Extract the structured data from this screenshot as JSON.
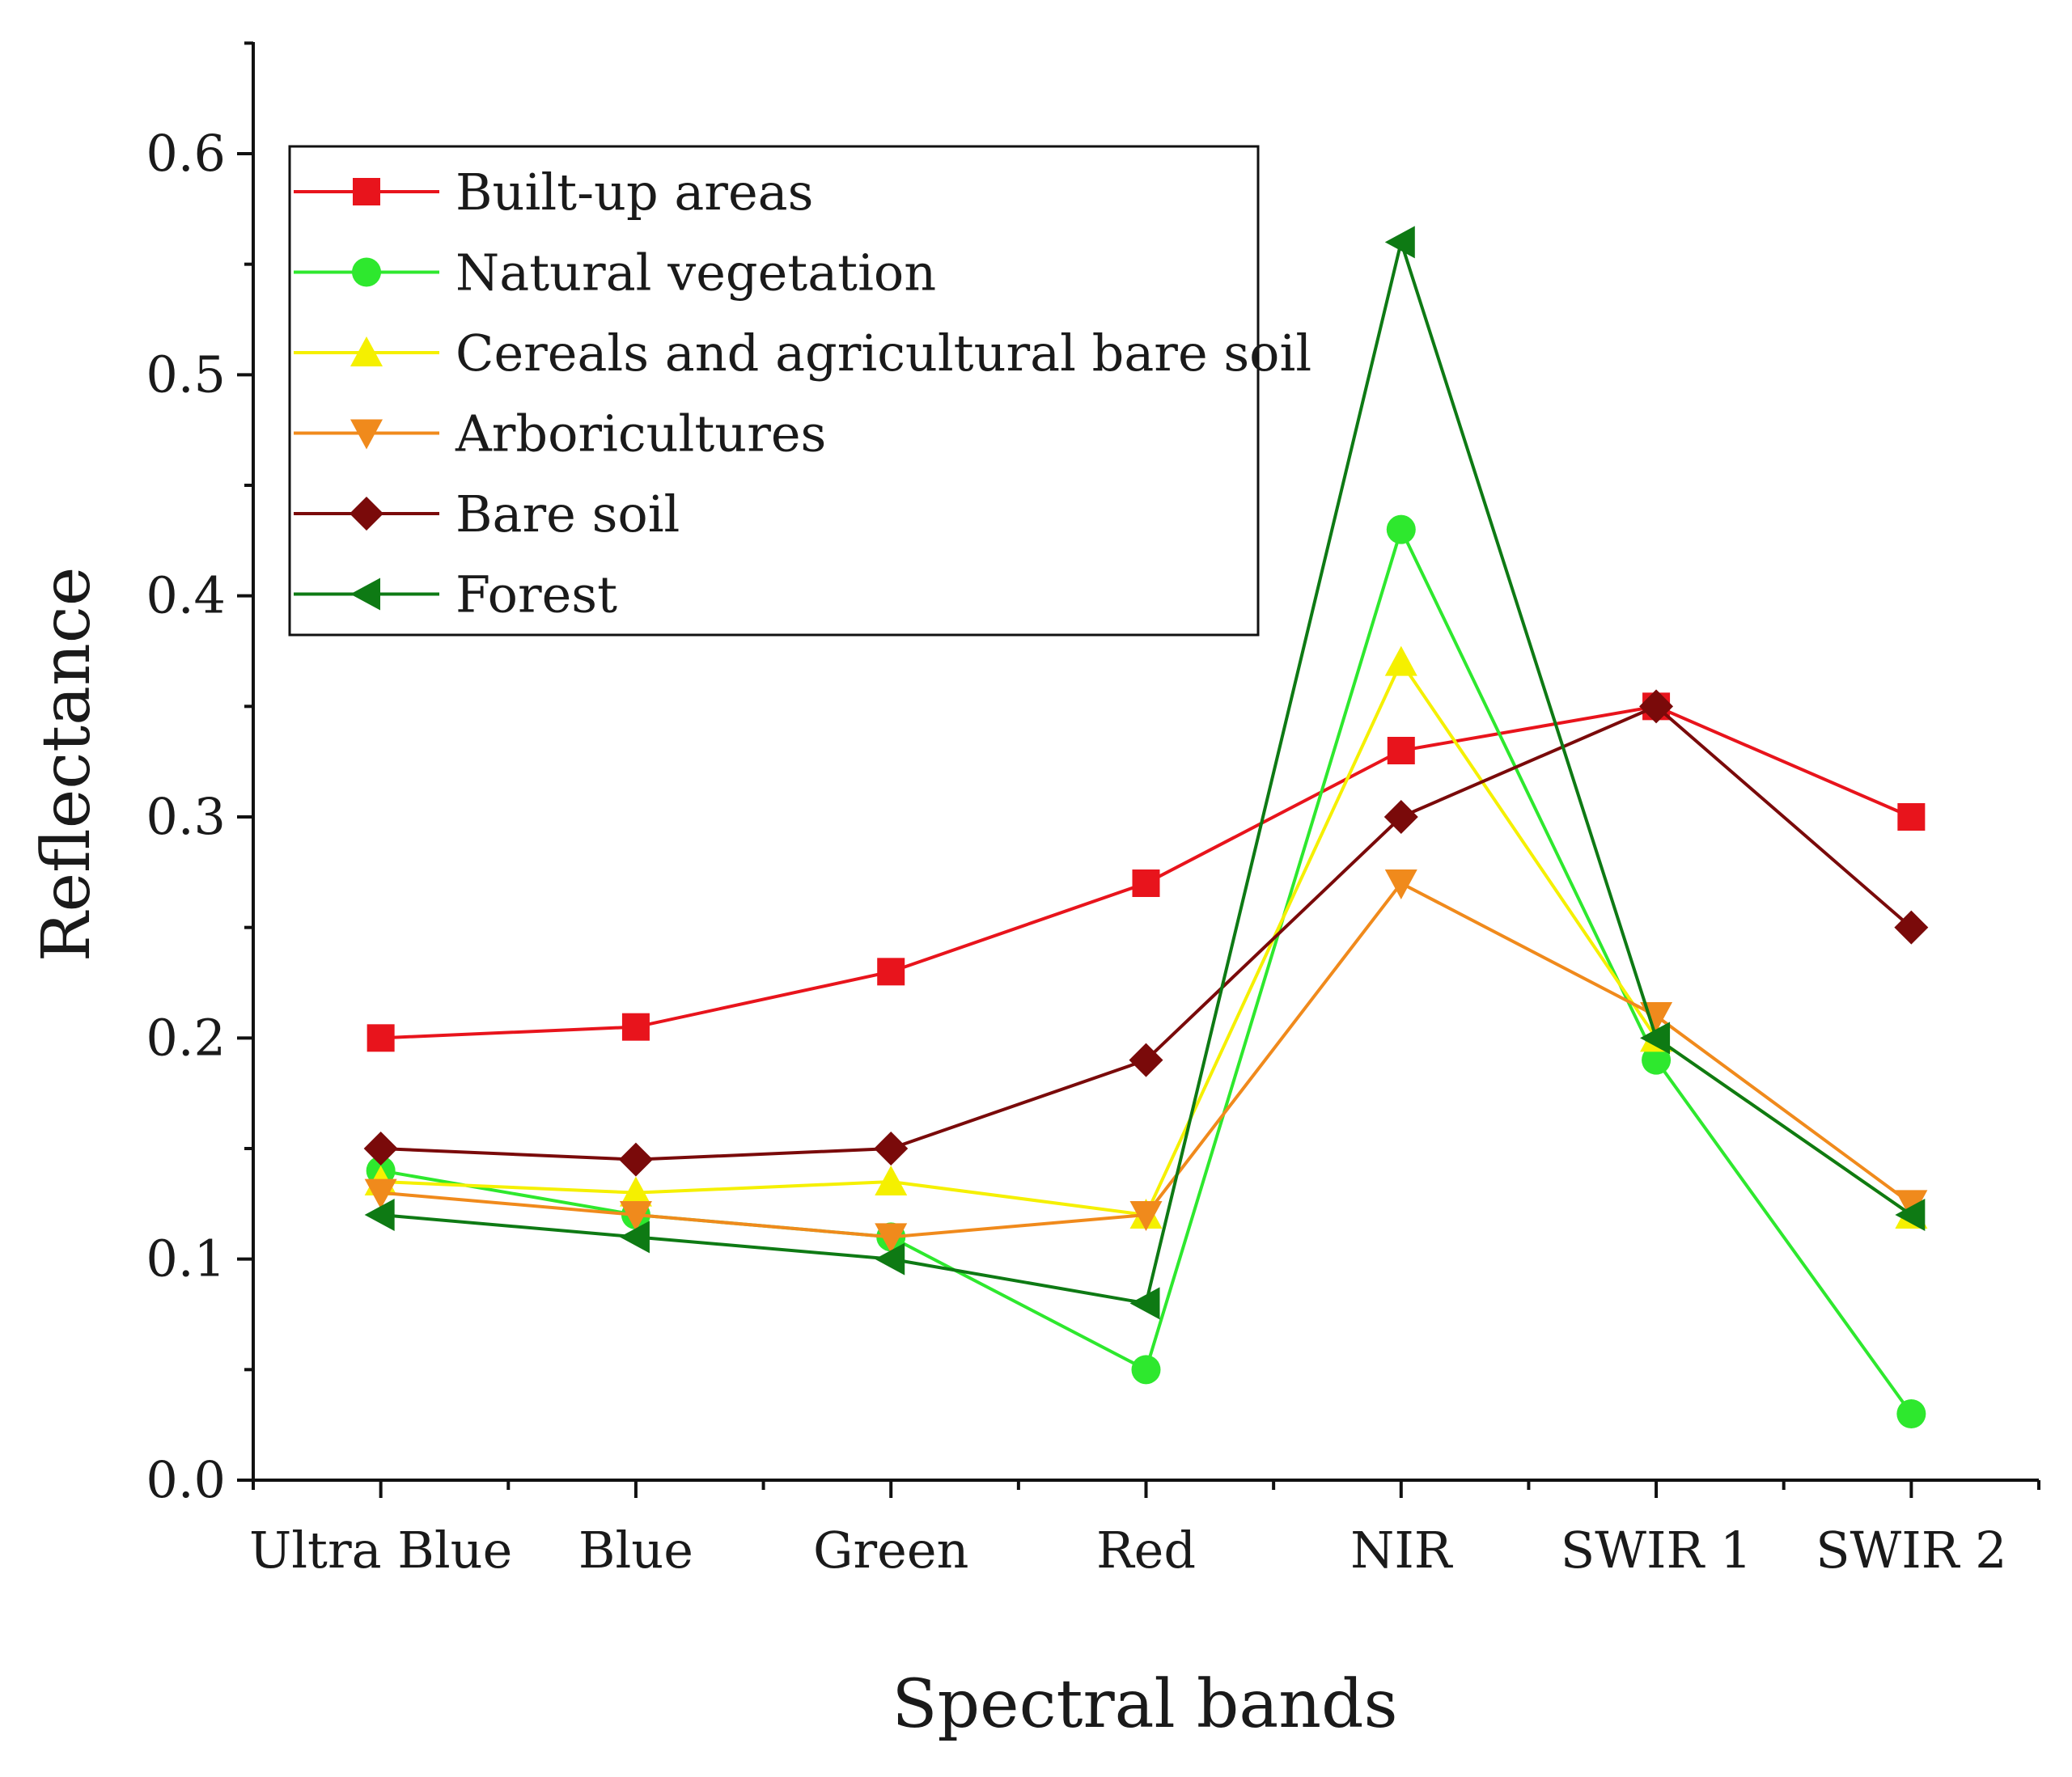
{
  "chart_data": {
    "type": "line",
    "title": "",
    "xlabel": "Spectral bands",
    "ylabel": "Reflectance",
    "categories": [
      "Ultra Blue",
      "Blue",
      "Green",
      "Red",
      "NIR",
      "SWIR 1",
      "SWIR 2"
    ],
    "ylim": [
      0.0,
      0.65
    ],
    "yticks": [
      "0.0",
      "0.1",
      "0.2",
      "0.3",
      "0.4",
      "0.5",
      "0.6"
    ],
    "grid": false,
    "legend_position": "top-left",
    "series": [
      {
        "name": "Built-up areas",
        "color": "#e8141c",
        "marker": "square",
        "values": [
          0.2,
          0.205,
          0.23,
          0.27,
          0.33,
          0.35,
          0.3
        ]
      },
      {
        "name": "Natural vegetation",
        "color": "#2ee82e",
        "marker": "circle",
        "values": [
          0.14,
          0.12,
          0.11,
          0.05,
          0.43,
          0.19,
          0.03
        ]
      },
      {
        "name": "Cereals and agricultural bare soil",
        "color": "#f5f000",
        "marker": "triangle-up",
        "values": [
          0.135,
          0.13,
          0.135,
          0.12,
          0.37,
          0.2,
          0.12
        ]
      },
      {
        "name": "Arboricultures",
        "color": "#f08a1c",
        "marker": "triangle-down",
        "values": [
          0.13,
          0.12,
          0.11,
          0.12,
          0.27,
          0.21,
          0.125
        ]
      },
      {
        "name": "Bare soil",
        "color": "#7a0a0a",
        "marker": "diamond",
        "values": [
          0.15,
          0.145,
          0.15,
          0.19,
          0.3,
          0.35,
          0.25
        ]
      },
      {
        "name": "Forest",
        "color": "#0e7a14",
        "marker": "triangle-left",
        "values": [
          0.12,
          0.11,
          0.1,
          0.08,
          0.56,
          0.2,
          0.12
        ]
      }
    ]
  }
}
